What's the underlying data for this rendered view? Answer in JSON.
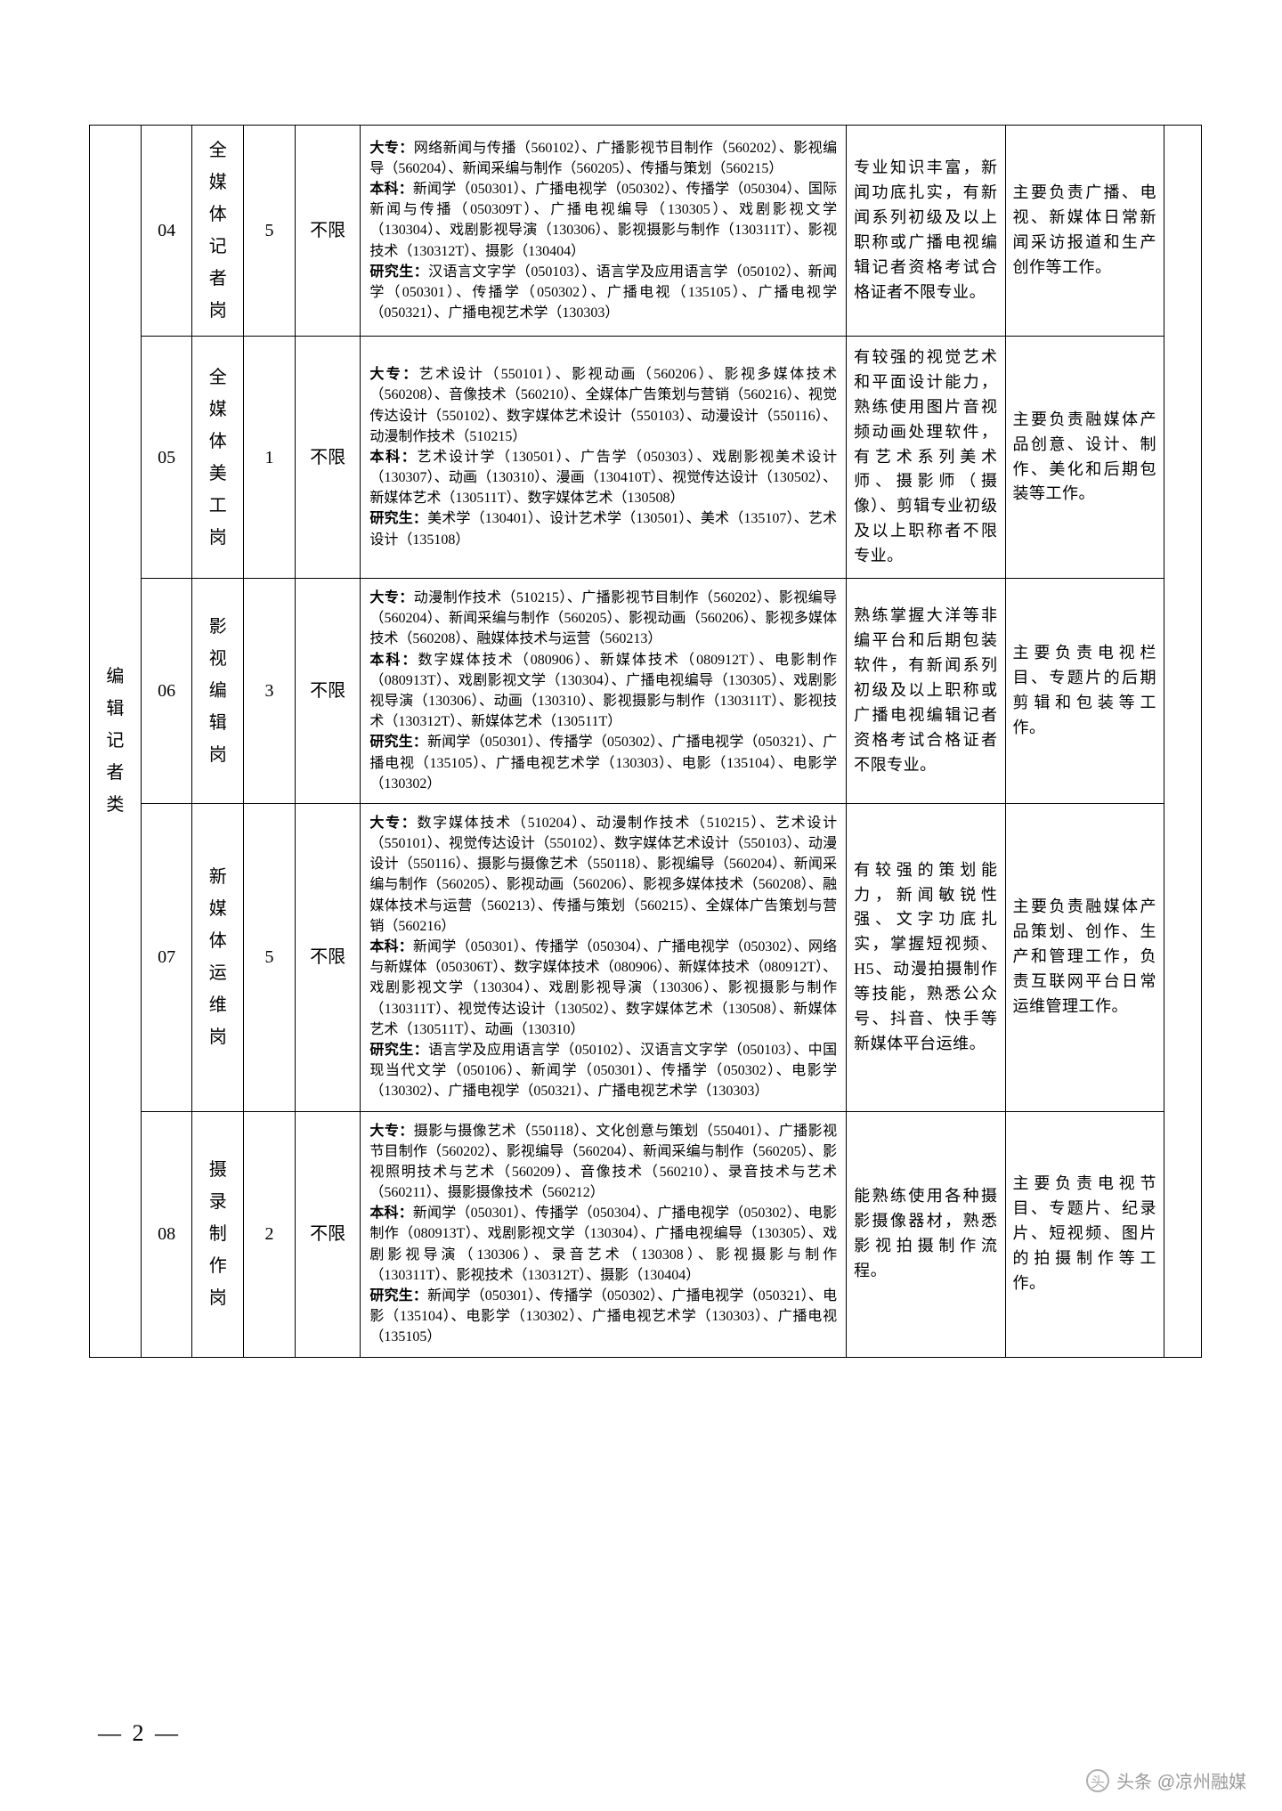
{
  "category": "编辑记者类",
  "pageNumber": "— 2 —",
  "watermark": {
    "icon": "头",
    "text": "头条 @凉州融媒"
  },
  "rows": [
    {
      "code": "04",
      "post": "全媒体记者岗",
      "count": "5",
      "limit": "不限",
      "majors": "<b>大专：</b>网络新闻与传播（560102）、广播影视节目制作（560202）、影视编导（560204）、新闻采编与制作（560205）、传播与策划（560215）<br><b>本科：</b>新闻学（050301）、广播电视学（050302）、传播学（050304）、国际新闻与传播（050309T）、广播电视编导（130305）、戏剧影视文学（130304）、戏剧影视导演（130306）、影视摄影与制作（130311T）、影视技术（130312T）、摄影（130404）<br><b>研究生：</b>汉语言文字学（050103）、语言学及应用语言学（050102）、新闻学（050301）、传播学（050302）、广播电视（135105）、广播电视学（050321）、广播电视艺术学（130303）",
      "req": "专业知识丰富，新闻功底扎实，有新闻系列初级及以上职称或广播电视编辑记者资格考试合格证者不限专业。",
      "duty": "主要负责广播、电视、新媒体日常新闻采访报道和生产创作等工作。"
    },
    {
      "code": "05",
      "post": "全媒体美工岗",
      "count": "1",
      "limit": "不限",
      "majors": "<b>大专：</b>艺术设计（550101）、影视动画（560206）、影视多媒体技术（560208）、音像技术（560210）、全媒体广告策划与营销（560216）、视觉传达设计（550102）、数字媒体艺术设计（550103）、动漫设计（550116）、动漫制作技术（510215）<br><b>本科：</b>艺术设计学（130501）、广告学（050303）、戏剧影视美术设计（130307）、动画（130310）、漫画（130410T）、视觉传达设计（130502）、新媒体艺术（130511T）、数字媒体艺术（130508）<br><b>研究生：</b>美术学（130401）、设计艺术学（130501）、美术（135107）、艺术设计（135108）",
      "req": "有较强的视觉艺术和平面设计能力，熟练使用图片音视频动画处理软件，有艺术系列美术师、摄影师（摄像）、剪辑专业初级及以上职称者不限专业。",
      "duty": "主要负责融媒体产品创意、设计、制作、美化和后期包装等工作。"
    },
    {
      "code": "06",
      "post": "影视编辑岗",
      "count": "3",
      "limit": "不限",
      "majors": "<b>大专：</b>动漫制作技术（510215）、广播影视节目制作（560202）、影视编导（560204）、新闻采编与制作（560205）、影视动画（560206）、影视多媒体技术（560208）、融媒体技术与运营（560213）<br><b>本科：</b>数字媒体技术（080906）、新媒体技术（080912T）、电影制作（080913T）、戏剧影视文学（130304）、广播电视编导（130305）、戏剧影视导演（130306）、动画（130310）、影视摄影与制作（130311T）、影视技术（130312T）、新媒体艺术（130511T）<br><b>研究生：</b>新闻学（050301）、传播学（050302）、广播电视学（050321）、广播电视（135105）、广播电视艺术学（130303）、电影（135104）、电影学（130302）",
      "req": "熟练掌握大洋等非编平台和后期包装软件，有新闻系列初级及以上职称或广播电视编辑记者资格考试合格证者不限专业。",
      "duty": "主要负责电视栏目、专题片的后期剪辑和包装等工作。"
    },
    {
      "code": "07",
      "post": "新媒体运维岗",
      "count": "5",
      "limit": "不限",
      "majors": "<b>大专：</b>数字媒体技术（510204）、动漫制作技术（510215）、艺术设计（550101）、视觉传达设计（550102）、数字媒体艺术设计（550103）、动漫设计（550116）、摄影与摄像艺术（550118）、影视编导（560204）、新闻采编与制作（560205）、影视动画（560206）、影视多媒体技术（560208）、融媒体技术与运营（560213）、传播与策划（560215）、全媒体广告策划与营销（560216）<br><b>本科：</b>新闻学（050301）、传播学（050304）、广播电视学（050302）、网络与新媒体（050306T）、数字媒体技术（080906）、新媒体技术（080912T）、戏剧影视文学（130304）、戏剧影视导演（130306）、影视摄影与制作（130311T）、视觉传达设计（130502）、数字媒体艺术（130508）、新媒体艺术（130511T）、动画（130310）<br><b>研究生：</b>语言学及应用语言学（050102）、汉语言文字学（050103）、中国现当代文学（050106）、新闻学（050301）、传播学（050302）、电影学（130302）、广播电视学（050321）、广播电视艺术学（130303）",
      "req": "有较强的策划能力，新闻敏锐性强、文字功底扎实，掌握短视频、H5、动漫拍摄制作等技能，熟悉公众号、抖音、快手等新媒体平台运维。",
      "duty": "主要负责融媒体产品策划、创作、生产和管理工作，负责互联网平台日常运维管理工作。"
    },
    {
      "code": "08",
      "post": "摄录制作岗",
      "count": "2",
      "limit": "不限",
      "majors": "<b>大专：</b>摄影与摄像艺术（550118）、文化创意与策划（550401）、广播影视节目制作（560202）、影视编导（560204）、新闻采编与制作（560205）、影视照明技术与艺术（560209）、音像技术（560210）、录音技术与艺术（560211）、摄影摄像技术（560212）<br><b>本科：</b>新闻学（050301）、传播学（050304）、广播电视学（050302）、电影制作（080913T）、戏剧影视文学（130304）、广播电视编导（130305）、戏剧影视导演（130306）、录音艺术（130308）、影视摄影与制作（130311T）、影视技术（130312T）、摄影（130404）<br><b>研究生：</b>新闻学（050301）、传播学（050302）、广播电视学（050321）、电影（135104）、电影学（130302）、广播电视艺术学（130303）、广播电视（135105）",
      "req": "能熟练使用各种摄影摄像器材，熟悉影视拍摄制作流程。",
      "duty": "主要负责电视节目、专题片、纪录片、短视频、图片的拍摄制作等工作。"
    }
  ]
}
